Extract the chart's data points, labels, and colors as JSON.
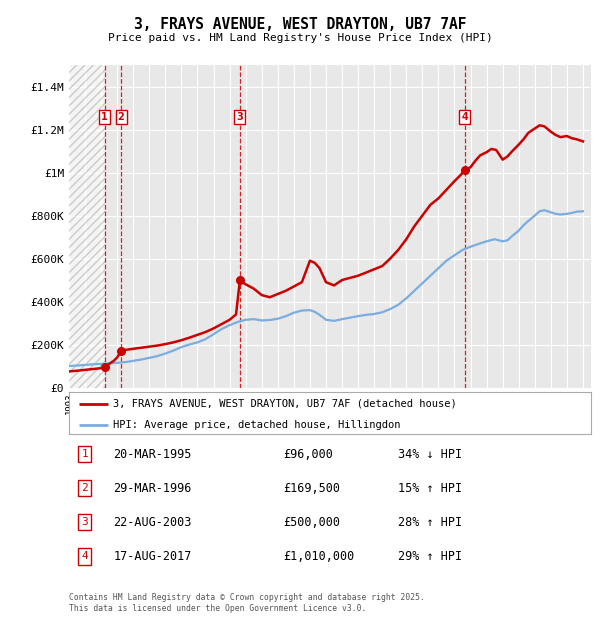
{
  "title": "3, FRAYS AVENUE, WEST DRAYTON, UB7 7AF",
  "subtitle": "Price paid vs. HM Land Registry's House Price Index (HPI)",
  "ylabel_ticks": [
    "£0",
    "£200K",
    "£400K",
    "£600K",
    "£800K",
    "£1M",
    "£1.2M",
    "£1.4M"
  ],
  "ytick_values": [
    0,
    200000,
    400000,
    600000,
    800000,
    1000000,
    1200000,
    1400000
  ],
  "ylim": [
    0,
    1500000
  ],
  "xlim_start": 1993.0,
  "xlim_end": 2025.5,
  "background_color": "#ffffff",
  "plot_bg_color": "#e8e8e8",
  "grid_color": "#ffffff",
  "property_line_color": "#cc0000",
  "hpi_line_color": "#7aade0",
  "legend_property": "3, FRAYS AVENUE, WEST DRAYTON, UB7 7AF (detached house)",
  "legend_hpi": "HPI: Average price, detached house, Hillingdon",
  "purchases": [
    {
      "label": "1",
      "date": "20-MAR-1995",
      "year": 1995.22,
      "price": 96000,
      "pct": "34%",
      "dir": "↓"
    },
    {
      "label": "2",
      "date": "29-MAR-1996",
      "year": 1996.24,
      "price": 169500,
      "pct": "15%",
      "dir": "↑"
    },
    {
      "label": "3",
      "date": "22-AUG-2003",
      "year": 2003.64,
      "price": 500000,
      "pct": "28%",
      "dir": "↑"
    },
    {
      "label": "4",
      "date": "17-AUG-2017",
      "year": 2017.63,
      "price": 1010000,
      "pct": "29%",
      "dir": "↑"
    }
  ],
  "footer": "Contains HM Land Registry data © Crown copyright and database right 2025.\nThis data is licensed under the Open Government Licence v3.0.",
  "property_data": [
    [
      1993.0,
      75000
    ],
    [
      1993.5,
      78000
    ],
    [
      1994.0,
      82000
    ],
    [
      1994.5,
      86000
    ],
    [
      1995.0,
      90000
    ],
    [
      1995.22,
      96000
    ],
    [
      1995.5,
      110000
    ],
    [
      1995.8,
      125000
    ],
    [
      1996.0,
      140000
    ],
    [
      1996.24,
      169500
    ],
    [
      1996.5,
      175000
    ],
    [
      1997.0,
      180000
    ],
    [
      1997.5,
      185000
    ],
    [
      1998.0,
      190000
    ],
    [
      1998.5,
      195000
    ],
    [
      1999.0,
      202000
    ],
    [
      1999.5,
      210000
    ],
    [
      2000.0,
      220000
    ],
    [
      2000.5,
      232000
    ],
    [
      2001.0,
      245000
    ],
    [
      2001.5,
      258000
    ],
    [
      2002.0,
      275000
    ],
    [
      2002.5,
      295000
    ],
    [
      2003.0,
      315000
    ],
    [
      2003.4,
      340000
    ],
    [
      2003.64,
      500000
    ],
    [
      2004.0,
      480000
    ],
    [
      2004.5,
      460000
    ],
    [
      2005.0,
      430000
    ],
    [
      2005.5,
      420000
    ],
    [
      2006.0,
      435000
    ],
    [
      2006.5,
      450000
    ],
    [
      2007.0,
      470000
    ],
    [
      2007.5,
      490000
    ],
    [
      2008.0,
      590000
    ],
    [
      2008.3,
      580000
    ],
    [
      2008.6,
      555000
    ],
    [
      2009.0,
      490000
    ],
    [
      2009.5,
      475000
    ],
    [
      2010.0,
      500000
    ],
    [
      2010.5,
      510000
    ],
    [
      2011.0,
      520000
    ],
    [
      2011.5,
      535000
    ],
    [
      2012.0,
      550000
    ],
    [
      2012.5,
      565000
    ],
    [
      2013.0,
      600000
    ],
    [
      2013.5,
      640000
    ],
    [
      2014.0,
      690000
    ],
    [
      2014.5,
      750000
    ],
    [
      2015.0,
      800000
    ],
    [
      2015.5,
      850000
    ],
    [
      2016.0,
      880000
    ],
    [
      2016.5,
      920000
    ],
    [
      2017.0,
      960000
    ],
    [
      2017.4,
      990000
    ],
    [
      2017.63,
      1010000
    ],
    [
      2018.0,
      1025000
    ],
    [
      2018.3,
      1055000
    ],
    [
      2018.6,
      1080000
    ],
    [
      2019.0,
      1095000
    ],
    [
      2019.3,
      1110000
    ],
    [
      2019.6,
      1105000
    ],
    [
      2020.0,
      1060000
    ],
    [
      2020.3,
      1075000
    ],
    [
      2020.6,
      1100000
    ],
    [
      2021.0,
      1130000
    ],
    [
      2021.3,
      1155000
    ],
    [
      2021.6,
      1185000
    ],
    [
      2022.0,
      1205000
    ],
    [
      2022.3,
      1220000
    ],
    [
      2022.6,
      1215000
    ],
    [
      2023.0,
      1190000
    ],
    [
      2023.3,
      1175000
    ],
    [
      2023.6,
      1165000
    ],
    [
      2024.0,
      1170000
    ],
    [
      2024.3,
      1160000
    ],
    [
      2024.6,
      1155000
    ],
    [
      2025.0,
      1145000
    ]
  ],
  "hpi_data": [
    [
      1993.0,
      100000
    ],
    [
      1993.5,
      102000
    ],
    [
      1994.0,
      105000
    ],
    [
      1994.5,
      108000
    ],
    [
      1995.0,
      110000
    ],
    [
      1995.5,
      112000
    ],
    [
      1996.0,
      115000
    ],
    [
      1996.5,
      118000
    ],
    [
      1997.0,
      124000
    ],
    [
      1997.5,
      130000
    ],
    [
      1998.0,
      138000
    ],
    [
      1998.5,
      146000
    ],
    [
      1999.0,
      158000
    ],
    [
      1999.5,
      172000
    ],
    [
      2000.0,
      188000
    ],
    [
      2000.5,
      200000
    ],
    [
      2001.0,
      210000
    ],
    [
      2001.5,
      225000
    ],
    [
      2002.0,
      248000
    ],
    [
      2002.5,
      272000
    ],
    [
      2003.0,
      290000
    ],
    [
      2003.5,
      305000
    ],
    [
      2004.0,
      315000
    ],
    [
      2004.5,
      318000
    ],
    [
      2005.0,
      312000
    ],
    [
      2005.5,
      314000
    ],
    [
      2006.0,
      320000
    ],
    [
      2006.5,
      332000
    ],
    [
      2007.0,
      348000
    ],
    [
      2007.5,
      358000
    ],
    [
      2008.0,
      360000
    ],
    [
      2008.3,
      352000
    ],
    [
      2008.6,
      338000
    ],
    [
      2009.0,
      315000
    ],
    [
      2009.5,
      310000
    ],
    [
      2010.0,
      318000
    ],
    [
      2010.5,
      325000
    ],
    [
      2011.0,
      332000
    ],
    [
      2011.5,
      338000
    ],
    [
      2012.0,
      342000
    ],
    [
      2012.5,
      350000
    ],
    [
      2013.0,
      365000
    ],
    [
      2013.5,
      385000
    ],
    [
      2014.0,
      415000
    ],
    [
      2014.5,
      450000
    ],
    [
      2015.0,
      485000
    ],
    [
      2015.5,
      520000
    ],
    [
      2016.0,
      555000
    ],
    [
      2016.5,
      590000
    ],
    [
      2017.0,
      615000
    ],
    [
      2017.5,
      640000
    ],
    [
      2018.0,
      655000
    ],
    [
      2018.5,
      668000
    ],
    [
      2019.0,
      680000
    ],
    [
      2019.5,
      690000
    ],
    [
      2020.0,
      680000
    ],
    [
      2020.3,
      685000
    ],
    [
      2020.6,
      705000
    ],
    [
      2021.0,
      730000
    ],
    [
      2021.3,
      755000
    ],
    [
      2021.6,
      775000
    ],
    [
      2022.0,
      800000
    ],
    [
      2022.3,
      820000
    ],
    [
      2022.6,
      825000
    ],
    [
      2023.0,
      815000
    ],
    [
      2023.3,
      808000
    ],
    [
      2023.6,
      805000
    ],
    [
      2024.0,
      808000
    ],
    [
      2024.3,
      812000
    ],
    [
      2024.6,
      818000
    ],
    [
      2025.0,
      820000
    ]
  ]
}
